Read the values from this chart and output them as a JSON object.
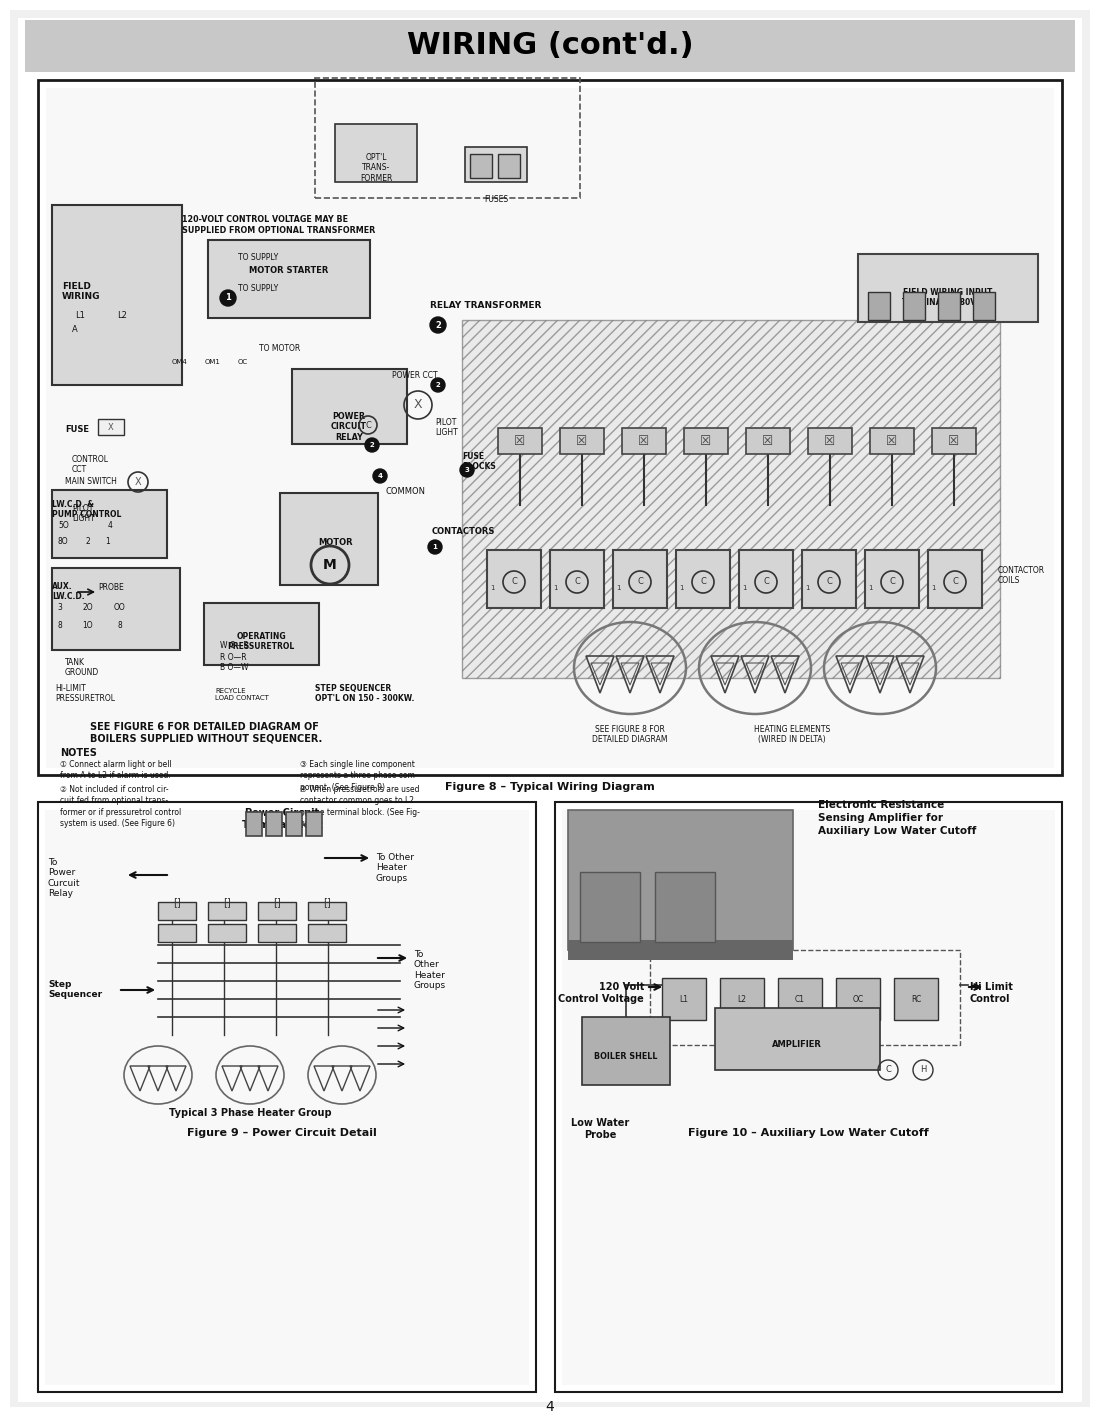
{
  "page_bg": "#ffffff",
  "header_bg": "#c8c8c8",
  "header_text": "WIRING (cont'd.)",
  "header_text_color": "#000000",
  "header_font_size": 22,
  "page_number": "4",
  "fig_width": 10.8,
  "fig_height": 13.97,
  "dpi": 100,
  "fig8_caption": "Figure 8 – Typical Wiring Diagram",
  "fig9_caption": "Figure 9 – Power Circuit Detail",
  "fig10_caption": "Figure 10 – Auxiliary Low Water Cutoff",
  "colors": {
    "border": "#1a1a1a",
    "component_fill": "#d8d8d8",
    "hatch_fill": "#e0e0e0",
    "circle_black": "#111111",
    "line": "#333333",
    "text": "#111111",
    "diagram_bg": "#f8f8f8",
    "fuse_fill": "#cccccc",
    "contactor_fill": "#dddddd",
    "amp_fill": "#888888"
  }
}
